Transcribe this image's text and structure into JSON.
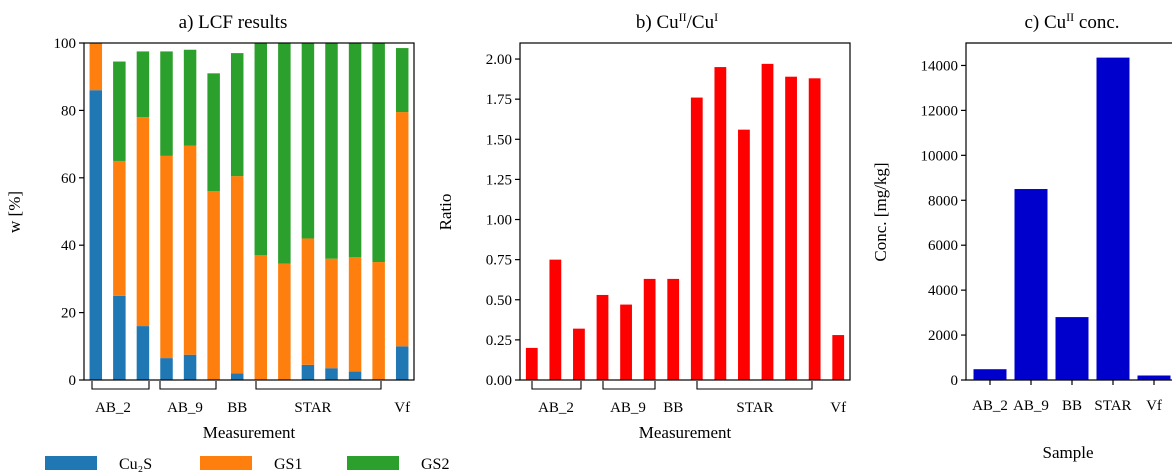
{
  "chart_data": [
    {
      "type": "bar",
      "stacked": true,
      "title": "a) LCF results",
      "xlabel": "Measurement",
      "ylabel": "w [%]",
      "ylim": [
        0,
        100
      ],
      "yticks": [
        "0",
        "20",
        "40",
        "60",
        "80",
        "100"
      ],
      "groups": [
        "AB_2",
        "AB_9",
        "BB",
        "STAR",
        "Vf"
      ],
      "series": [
        {
          "name": "Cu₂S",
          "color": "#1f77b4",
          "values": [
            86,
            25,
            16,
            6.5,
            7.5,
            0,
            2,
            0,
            0,
            4.5,
            3.5,
            2.5,
            0,
            10
          ]
        },
        {
          "name": "GS1",
          "color": "#ff7f0e",
          "values": [
            14,
            40,
            62,
            60,
            62,
            56,
            58.5,
            37,
            34.5,
            37.5,
            32.5,
            34,
            35,
            69.5
          ]
        },
        {
          "name": "GS2",
          "color": "#2ca02c",
          "values": [
            0,
            29.5,
            19.5,
            31,
            28.5,
            35,
            36.5,
            63,
            65.5,
            58,
            64,
            63.5,
            65,
            19
          ]
        }
      ]
    },
    {
      "type": "bar",
      "title_main": "b) Cu",
      "title_sup1": "II",
      "title_mid": "/Cu",
      "title_sup2": "I",
      "xlabel": "Measurement",
      "ylabel": "Ratio",
      "ylim": [
        0,
        2.1
      ],
      "yticks": [
        "0.00",
        "0.25",
        "0.50",
        "0.75",
        "1.00",
        "1.25",
        "1.50",
        "1.75",
        "2.00"
      ],
      "groups": [
        "AB_2",
        "AB_9",
        "BB",
        "STAR",
        "Vf"
      ],
      "color": "#ff0000",
      "values": [
        0.2,
        0.75,
        0.32,
        0.53,
        0.47,
        0.63,
        0.63,
        1.76,
        1.95,
        1.56,
        1.97,
        1.89,
        1.88,
        0.28
      ]
    },
    {
      "type": "bar",
      "title_main": "c) Cu",
      "title_sup": "II",
      "title_end": " conc.",
      "xlabel": "Sample",
      "ylabel": "Conc. [mg/kg]",
      "ylim": [
        0,
        15000
      ],
      "yticks": [
        "0",
        "2000",
        "4000",
        "6000",
        "8000",
        "10000",
        "12000",
        "14000"
      ],
      "categories": [
        "AB_2",
        "AB_9",
        "BB",
        "STAR",
        "Vf"
      ],
      "color": "#0000cc",
      "values": [
        480,
        8500,
        2800,
        14350,
        200
      ]
    }
  ]
}
